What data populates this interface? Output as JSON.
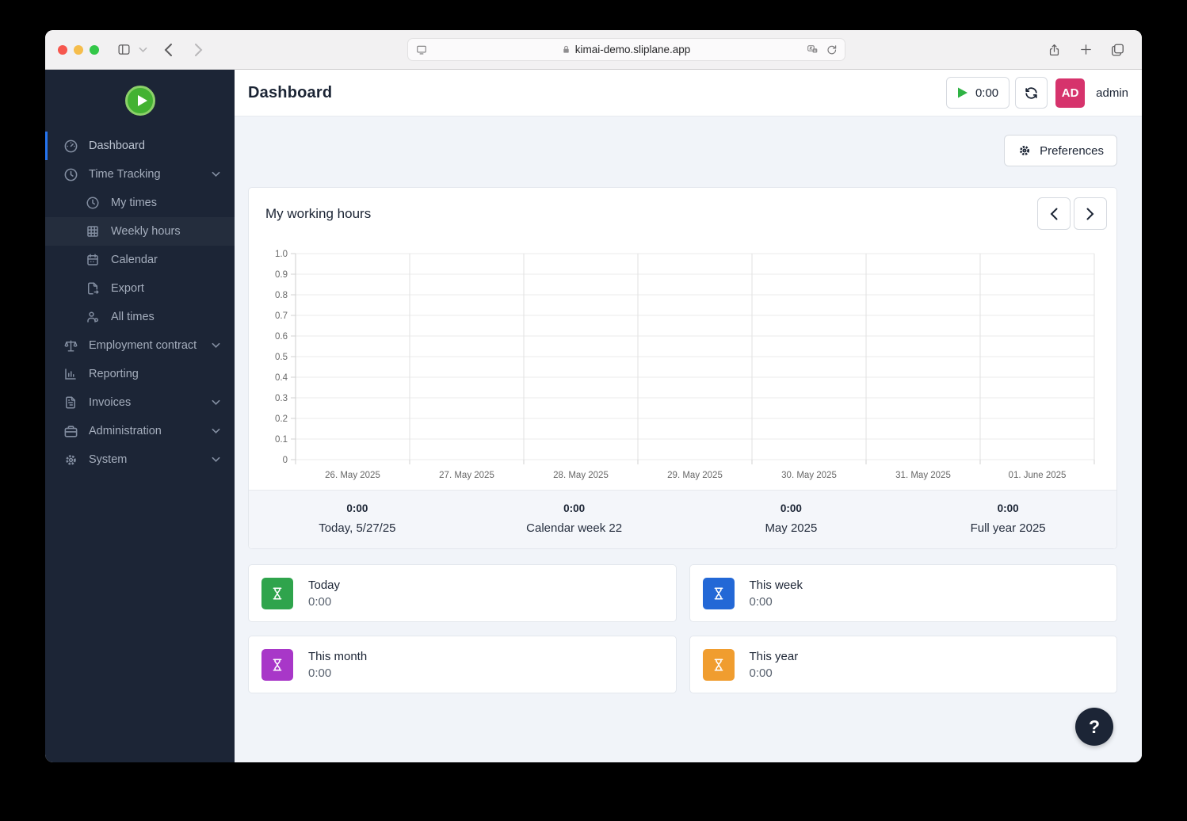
{
  "browser": {
    "url": "kimai-demo.sliplane.app",
    "traffic_colors": {
      "close": "#f6574e",
      "minimize": "#f5bd4c",
      "maximize": "#33c748"
    }
  },
  "header": {
    "title": "Dashboard",
    "timer_value": "0:00",
    "avatar_initials": "AD",
    "username": "admin",
    "avatar_color": "#d6336c"
  },
  "toolbar": {
    "preferences_label": "Preferences"
  },
  "sidebar": {
    "items": [
      {
        "label": "Dashboard"
      },
      {
        "label": "Time Tracking"
      },
      {
        "label": "My times"
      },
      {
        "label": "Weekly hours"
      },
      {
        "label": "Calendar"
      },
      {
        "label": "Export"
      },
      {
        "label": "All times"
      },
      {
        "label": "Employment contract"
      },
      {
        "label": "Reporting"
      },
      {
        "label": "Invoices"
      },
      {
        "label": "Administration"
      },
      {
        "label": "System"
      }
    ]
  },
  "widget": {
    "title": "My working hours"
  },
  "chart_data": {
    "type": "bar",
    "title": "My working hours",
    "categories": [
      "26. May 2025",
      "27. May 2025",
      "28. May 2025",
      "29. May 2025",
      "30. May 2025",
      "31. May 2025",
      "01. June 2025"
    ],
    "values": [
      0,
      0,
      0,
      0,
      0,
      0,
      0
    ],
    "xlabel": "",
    "ylabel": "",
    "ylim": [
      0,
      1.0
    ],
    "yticks": [
      "1.0",
      "0.9",
      "0.8",
      "0.7",
      "0.6",
      "0.5",
      "0.4",
      "0.3",
      "0.2",
      "0.1",
      "0"
    ],
    "grid": true,
    "legend": false
  },
  "summary": {
    "items": [
      {
        "value": "0:00",
        "label": "Today, 5/27/25"
      },
      {
        "value": "0:00",
        "label": "Calendar week 22"
      },
      {
        "value": "0:00",
        "label": "May 2025"
      },
      {
        "value": "0:00",
        "label": "Full year 2025"
      }
    ]
  },
  "cards": [
    {
      "title": "Today",
      "value": "0:00",
      "color": "#2fa44c"
    },
    {
      "title": "This week",
      "value": "0:00",
      "color": "#2368d6"
    },
    {
      "title": "This month",
      "value": "0:00",
      "color": "#a837c8"
    },
    {
      "title": "This year",
      "value": "0:00",
      "color": "#f09d2f"
    }
  ],
  "help": {
    "label": "?"
  }
}
